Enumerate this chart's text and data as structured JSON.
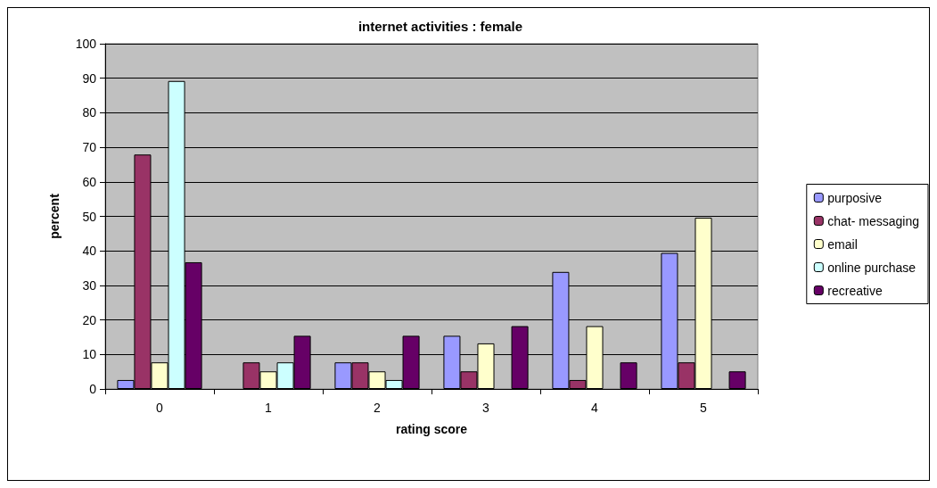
{
  "chart_data": {
    "type": "bar",
    "title": "internet activities : female",
    "xlabel": "rating score",
    "ylabel": "percent",
    "categories": [
      "0",
      "1",
      "2",
      "3",
      "4",
      "5"
    ],
    "series": [
      {
        "name": "purposive",
        "color": "#9999ff",
        "values": [
          2.6,
          null,
          7.7,
          15.4,
          33.9,
          39.4
        ]
      },
      {
        "name": "chat- messaging",
        "color": "#993366",
        "values": [
          67.9,
          7.7,
          7.7,
          5.1,
          2.6,
          7.7
        ]
      },
      {
        "name": "email",
        "color": "#ffffcc",
        "values": [
          7.7,
          5.1,
          5.1,
          13.2,
          18.2,
          49.6
        ]
      },
      {
        "name": "online purchase",
        "color": "#ccffff",
        "values": [
          89.2,
          7.7,
          2.6,
          null,
          null,
          null
        ]
      },
      {
        "name": "recreative",
        "color": "#660066",
        "values": [
          36.7,
          15.4,
          15.4,
          18.2,
          7.7,
          5.1
        ]
      }
    ],
    "ylim": [
      0,
      100
    ],
    "yticks": [
      0,
      10,
      20,
      30,
      40,
      50,
      60,
      70,
      80,
      90,
      100
    ],
    "grid": "y",
    "legend": "right"
  }
}
